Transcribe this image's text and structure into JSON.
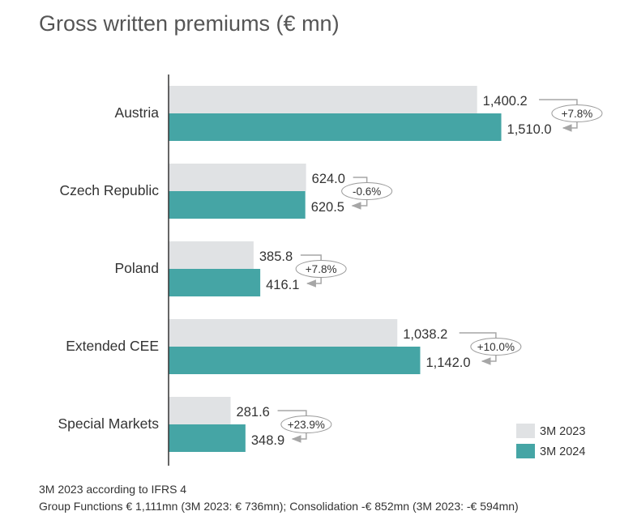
{
  "chart_data": {
    "type": "bar",
    "orientation": "horizontal",
    "title": "Gross written premiums (€ mn)",
    "categories": [
      "Austria",
      "Czech Republic",
      "Poland",
      "Extended CEE",
      "Special Markets"
    ],
    "series": [
      {
        "name": "3M 2023",
        "color": "#e0e2e4",
        "values": [
          1400.2,
          624.0,
          385.8,
          1038.2,
          281.6
        ],
        "labels": [
          "1,400.2",
          "624.0",
          "385.8",
          "1,038.2",
          "281.6"
        ]
      },
      {
        "name": "3M 2024",
        "color": "#45a5a5",
        "values": [
          1510.0,
          620.5,
          416.1,
          1142.0,
          348.9
        ],
        "labels": [
          "1,510.0",
          "620.5",
          "416.1",
          "1,142.0",
          "348.9"
        ]
      }
    ],
    "changes": [
      "+7.8%",
      "-0.6%",
      "+7.8%",
      "+10.0%",
      "+23.9%"
    ],
    "xlim": [
      0,
      1600
    ],
    "grid": false,
    "legend": "bottom-right"
  },
  "notes": [
    "3M 2023 according to IFRS 4",
    "Group Functions € 1,111mn (3M 2023: € 736mn); Consolidation -€ 852mn (3M 2023: -€ 594mn)"
  ],
  "colors": {
    "bar_2023": "#e0e2e4",
    "bar_2024": "#45a5a5",
    "connector": "#a6a6a6"
  }
}
